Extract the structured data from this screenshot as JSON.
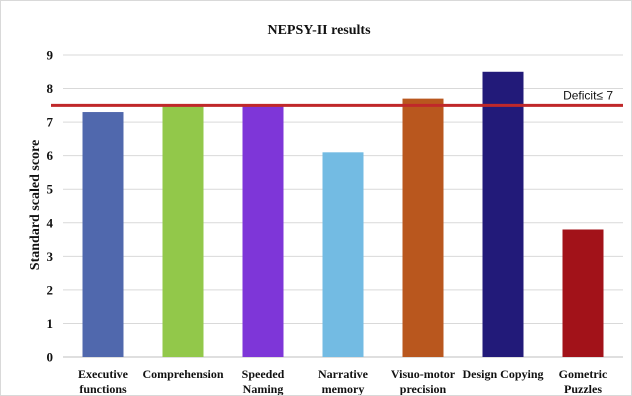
{
  "chart_data": {
    "type": "bar",
    "title": "NEPSY-II results",
    "ylabel": "Standard  scaled score",
    "xlabel": "",
    "ylim": [
      0,
      9
    ],
    "yticks": [
      0,
      1,
      2,
      3,
      4,
      5,
      6,
      7,
      8,
      9
    ],
    "grid": true,
    "categories": [
      [
        "Executive",
        "functions"
      ],
      [
        "Comprehension"
      ],
      [
        "Speeded",
        "Naming"
      ],
      [
        "Narrative",
        "memory"
      ],
      [
        "Visuo-motor",
        "precision"
      ],
      [
        "Design Copying"
      ],
      [
        "Gometric",
        "Puzzles"
      ]
    ],
    "values": [
      7.3,
      7.5,
      7.5,
      6.1,
      7.7,
      8.5,
      3.8
    ],
    "colors": [
      "#5068AD",
      "#92C84A",
      "#7E36D8",
      "#73BBE3",
      "#B9571E",
      "#221A79",
      "#A21219"
    ],
    "reference_line": {
      "label": "Deficit≤ 7",
      "value": 7.5,
      "color": "#C0282A"
    }
  }
}
